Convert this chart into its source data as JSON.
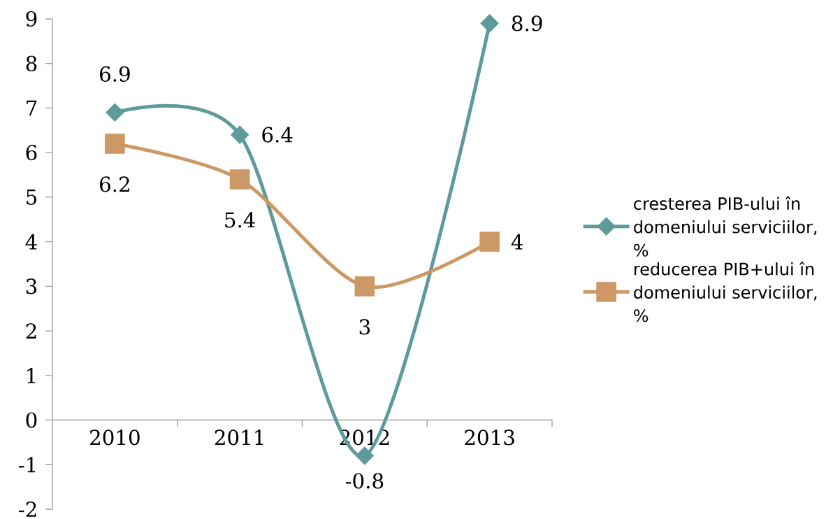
{
  "chart_data": {
    "type": "line",
    "categories": [
      "2010",
      "2011",
      "2012",
      "2013"
    ],
    "series": [
      {
        "name": "cresterea PIB-ului în domeniului serviciilor, %",
        "color": "#5f9a9a",
        "marker": "diamond",
        "values": [
          6.9,
          6.4,
          -0.8,
          8.9
        ]
      },
      {
        "name": "reducerea PIB+ului în domeniului serviciilor, %",
        "color": "#cc9966",
        "marker": "square",
        "values": [
          6.2,
          5.4,
          3,
          4
        ]
      }
    ],
    "ylim": [
      -2,
      9
    ],
    "yticks": [
      -2,
      -1,
      0,
      1,
      2,
      3,
      4,
      5,
      6,
      7,
      8,
      9
    ],
    "legend": "right",
    "data_labels": true,
    "line_style": "solid"
  }
}
